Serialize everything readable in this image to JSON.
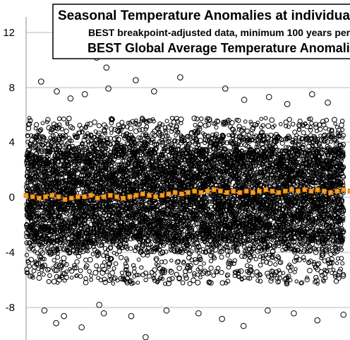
{
  "chart_data": {
    "type": "scatter",
    "title_lines": [
      "Seasonal Temperature Anomalies at individual st",
      "BEST breakpoint-adjusted data, minimum 100 years per",
      "BEST Global Average Temperature Anomalie"
    ],
    "xlabel": "",
    "ylabel": "",
    "ylim": [
      -10.5,
      12.5
    ],
    "yticks": [
      12,
      8,
      4,
      0,
      -4,
      -8
    ],
    "ytick_labels": [
      "12",
      "8",
      "4",
      "0",
      "-4",
      "-8"
    ],
    "grid": true,
    "colors": {
      "station_markers": "#000000",
      "global_average": "#f5a025",
      "global_average_edge": "#c86d00",
      "gridline": "#b8b8b8"
    },
    "station_band": {
      "typical_high": 3.5,
      "typical_low": -4.5
    },
    "notable_outliers": [
      {
        "x": 23,
        "y": 7.9
      },
      {
        "x": 47,
        "y": 7.2
      },
      {
        "x": 68,
        "y": 6.7
      },
      {
        "x": 90,
        "y": 7.0
      },
      {
        "x": 108,
        "y": 9.6
      },
      {
        "x": 123,
        "y": 8.9
      },
      {
        "x": 126,
        "y": 7.4
      },
      {
        "x": 168,
        "y": 8.0
      },
      {
        "x": 196,
        "y": 7.2
      },
      {
        "x": 236,
        "y": 8.2
      },
      {
        "x": 305,
        "y": 7.4
      },
      {
        "x": 334,
        "y": 6.6
      },
      {
        "x": 372,
        "y": 6.8
      },
      {
        "x": 400,
        "y": 6.3
      },
      {
        "x": 438,
        "y": 7.0
      },
      {
        "x": 462,
        "y": 6.4
      },
      {
        "x": 28,
        "y": -8.4
      },
      {
        "x": 46,
        "y": -9.3
      },
      {
        "x": 58,
        "y": -8.8
      },
      {
        "x": 85,
        "y": -9.6
      },
      {
        "x": 112,
        "y": -8.0
      },
      {
        "x": 119,
        "y": -8.6
      },
      {
        "x": 161,
        "y": -8.8
      },
      {
        "x": 183,
        "y": -10.3
      },
      {
        "x": 215,
        "y": -8.4
      },
      {
        "x": 264,
        "y": -8.6
      },
      {
        "x": 300,
        "y": -9.0
      },
      {
        "x": 333,
        "y": -9.5
      },
      {
        "x": 370,
        "y": -8.4
      },
      {
        "x": 410,
        "y": -8.6
      },
      {
        "x": 446,
        "y": -9.1
      },
      {
        "x": 486,
        "y": -8.7
      }
    ],
    "global_average_series": [
      -0.2,
      -0.3,
      -0.4,
      -0.3,
      -0.2,
      -0.3,
      -0.5,
      -0.4,
      -0.3,
      -0.3,
      -0.2,
      -0.4,
      -0.3,
      -0.2,
      -0.3,
      -0.4,
      -0.3,
      -0.2,
      -0.1,
      -0.2,
      -0.3,
      -0.2,
      -0.1,
      0.0,
      -0.1,
      0.0,
      0.1,
      0.0,
      0.1,
      0.2,
      0.1,
      0.0,
      0.1,
      0.0,
      0.1,
      0.0,
      0.1,
      0.2,
      0.1,
      0.0,
      0.1,
      0.2,
      0.1,
      0.2,
      0.1,
      0.2,
      0.1,
      0.0,
      0.1,
      0.2,
      0.1
    ]
  }
}
